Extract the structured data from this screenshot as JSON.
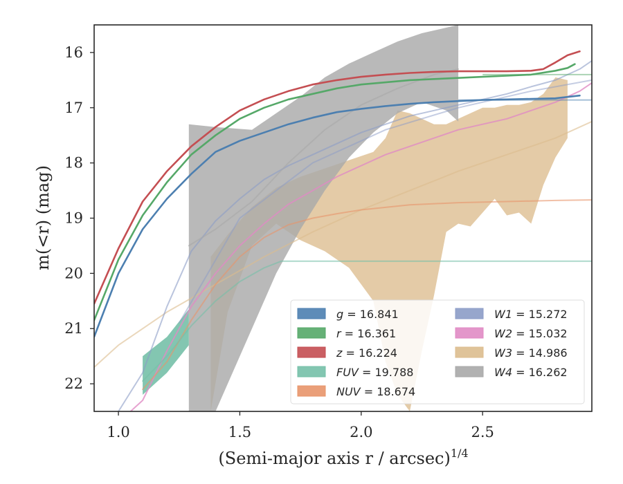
{
  "chart_data": {
    "type": "line",
    "xlabel": "(Semi-major axis r / arcsec)",
    "xlabel_superscript": "1/4",
    "ylabel": "m(<r) (mag)",
    "xlim": [
      0.9,
      2.95
    ],
    "ylim": [
      22.5,
      15.5
    ],
    "y_inverted": true,
    "x_ticks": [
      1.0,
      1.5,
      2.0,
      2.5
    ],
    "x_tick_labels": [
      "1.0",
      "1.5",
      "2.0",
      "2.5"
    ],
    "y_ticks": [
      16,
      17,
      18,
      19,
      20,
      21,
      22
    ],
    "y_tick_labels": [
      "16",
      "17",
      "18",
      "19",
      "20",
      "21",
      "22"
    ],
    "grid": false,
    "legend": {
      "position": "lower-right",
      "columns": 2,
      "entries": [
        {
          "key": "g",
          "var": "g",
          "value": "16.841",
          "color": "#4c7fb0"
        },
        {
          "key": "r",
          "var": "r",
          "value": "16.361",
          "color": "#55a868"
        },
        {
          "key": "z",
          "var": "z",
          "value": "16.224",
          "color": "#c44e52"
        },
        {
          "key": "FUV",
          "var": "FUV",
          "value": "19.788",
          "color": "#76c0a8"
        },
        {
          "key": "NUV",
          "var": "NUV",
          "value": "18.674",
          "color": "#e8956a"
        },
        {
          "key": "W1",
          "var": "W1",
          "value": "15.272",
          "color": "#8c9cc7"
        },
        {
          "key": "W2",
          "var": "W2",
          "value": "15.032",
          "color": "#e08bc4"
        },
        {
          "key": "W3",
          "var": "W3",
          "value": "14.986",
          "color": "#dcbc8e"
        },
        {
          "key": "W4",
          "var": "W4",
          "value": "16.262",
          "color": "#a9a9a9"
        }
      ]
    },
    "series": [
      {
        "name": "g",
        "color": "#4c7fb0",
        "kind": "line",
        "x": [
          0.9,
          1.0,
          1.1,
          1.2,
          1.3,
          1.4,
          1.5,
          1.6,
          1.7,
          1.8,
          1.9,
          2.0,
          2.1,
          2.2,
          2.3,
          2.4,
          2.5,
          2.6,
          2.7,
          2.8,
          2.9
        ],
        "y": [
          21.15,
          20.0,
          19.2,
          18.65,
          18.2,
          17.8,
          17.6,
          17.45,
          17.3,
          17.18,
          17.08,
          17.02,
          16.97,
          16.93,
          16.9,
          16.88,
          16.86,
          16.85,
          16.84,
          16.83,
          16.78
        ],
        "model": {
          "x": [
            2.4,
            2.95
          ],
          "y": [
            16.86,
            16.86
          ]
        }
      },
      {
        "name": "r",
        "color": "#55a868",
        "kind": "line",
        "x": [
          0.9,
          1.0,
          1.1,
          1.2,
          1.3,
          1.4,
          1.5,
          1.6,
          1.7,
          1.8,
          1.9,
          2.0,
          2.1,
          2.2,
          2.3,
          2.4,
          2.5,
          2.6,
          2.7,
          2.8,
          2.85,
          2.88
        ],
        "y": [
          20.85,
          19.75,
          18.95,
          18.35,
          17.85,
          17.5,
          17.2,
          17.0,
          16.85,
          16.75,
          16.65,
          16.58,
          16.54,
          16.5,
          16.48,
          16.46,
          16.44,
          16.42,
          16.4,
          16.33,
          16.28,
          16.21
        ],
        "model": {
          "x": [
            2.5,
            2.95
          ],
          "y": [
            16.4,
            16.4
          ]
        }
      },
      {
        "name": "z",
        "color": "#c44e52",
        "kind": "line",
        "x": [
          0.9,
          1.0,
          1.1,
          1.2,
          1.3,
          1.4,
          1.5,
          1.6,
          1.7,
          1.8,
          1.9,
          2.0,
          2.1,
          2.2,
          2.3,
          2.4,
          2.5,
          2.6,
          2.7,
          2.75,
          2.8,
          2.85,
          2.9
        ],
        "y": [
          20.55,
          19.55,
          18.7,
          18.15,
          17.7,
          17.35,
          17.05,
          16.85,
          16.7,
          16.58,
          16.5,
          16.44,
          16.4,
          16.37,
          16.35,
          16.34,
          16.34,
          16.34,
          16.33,
          16.3,
          16.18,
          16.05,
          15.98
        ]
      },
      {
        "name": "FUV",
        "color": "#76c0a8",
        "kind": "band+line",
        "band_x": [
          1.1,
          1.2,
          1.29
        ],
        "band_lo": [
          21.5,
          21.15,
          20.65
        ],
        "band_hi": [
          22.2,
          21.8,
          21.3
        ],
        "x": [
          1.1,
          1.2,
          1.3,
          1.4,
          1.5,
          1.6,
          1.67,
          2.0,
          2.5,
          2.95
        ],
        "y": [
          21.95,
          21.5,
          20.95,
          20.5,
          20.15,
          19.9,
          19.78,
          19.78,
          19.78,
          19.78
        ]
      },
      {
        "name": "NUV",
        "color": "#e8956a",
        "kind": "line",
        "x": [
          1.1,
          1.2,
          1.3,
          1.4,
          1.5,
          1.6,
          1.7,
          1.8,
          1.9,
          2.0,
          2.2,
          2.4,
          2.6,
          2.8,
          2.95
        ],
        "y": [
          22.1,
          21.6,
          20.85,
          20.2,
          19.7,
          19.35,
          19.12,
          19.0,
          18.92,
          18.85,
          18.76,
          18.72,
          18.7,
          18.68,
          18.67
        ]
      },
      {
        "name": "W1",
        "color": "#8c9cc7",
        "kind": "line",
        "x": [
          1.0,
          1.1,
          1.2,
          1.3,
          1.4,
          1.5,
          1.6,
          1.7,
          1.8,
          1.9,
          2.0,
          2.1,
          2.2,
          2.3,
          2.4,
          2.5,
          2.6,
          2.7,
          2.8,
          2.9,
          2.95
        ],
        "y": [
          22.5,
          21.8,
          20.6,
          19.6,
          19.05,
          18.65,
          18.3,
          18.05,
          17.85,
          17.65,
          17.45,
          17.3,
          17.15,
          17.05,
          16.95,
          16.85,
          16.75,
          16.62,
          16.5,
          16.3,
          16.15
        ],
        "model": {
          "x": [
            1.25,
            1.5,
            1.8,
            2.1,
            2.4,
            2.7,
            2.95
          ],
          "y": [
            20.9,
            19.0,
            18.0,
            17.4,
            17.0,
            16.7,
            16.5
          ]
        }
      },
      {
        "name": "W2",
        "color": "#e08bc4",
        "kind": "line",
        "x": [
          1.0,
          1.1,
          1.2,
          1.3,
          1.4,
          1.5,
          1.6,
          1.7,
          1.8,
          1.9,
          2.0,
          2.1,
          2.2,
          2.3,
          2.4,
          2.5,
          2.6,
          2.7,
          2.8,
          2.9,
          2.95
        ],
        "y": [
          22.7,
          22.3,
          21.4,
          20.6,
          20.0,
          19.5,
          19.1,
          18.75,
          18.5,
          18.25,
          18.05,
          17.85,
          17.7,
          17.55,
          17.4,
          17.3,
          17.2,
          17.05,
          16.9,
          16.7,
          16.55
        ]
      },
      {
        "name": "W3",
        "color": "#dcbc8e",
        "kind": "band+line",
        "band_x": [
          1.38,
          1.45,
          1.55,
          1.65,
          1.75,
          1.85,
          1.95,
          2.05,
          2.1,
          2.15,
          2.2,
          2.25,
          2.3,
          2.35,
          2.4,
          2.45,
          2.5,
          2.55,
          2.6,
          2.65,
          2.7,
          2.75,
          2.8,
          2.85
        ],
        "band_lo": [
          22.5,
          20.7,
          19.5,
          19.1,
          19.4,
          19.6,
          19.9,
          20.5,
          21.6,
          22.2,
          22.5,
          21.4,
          20.4,
          19.25,
          19.1,
          19.15,
          18.9,
          18.65,
          18.95,
          18.9,
          19.1,
          18.4,
          17.9,
          17.55
        ],
        "band_hi": [
          19.7,
          19.3,
          18.8,
          18.45,
          18.25,
          18.1,
          17.95,
          17.8,
          17.55,
          17.05,
          17.1,
          17.2,
          17.3,
          17.3,
          17.2,
          17.1,
          17.0,
          17.0,
          16.95,
          16.95,
          16.9,
          16.75,
          16.45,
          16.5
        ],
        "x": [
          0.9,
          1.0,
          1.2,
          1.4,
          1.6,
          1.8,
          2.0,
          2.2,
          2.4,
          2.6,
          2.8,
          2.95
        ],
        "y": [
          21.7,
          21.3,
          20.7,
          20.2,
          19.7,
          19.25,
          18.85,
          18.5,
          18.15,
          17.85,
          17.55,
          17.25
        ]
      },
      {
        "name": "W4",
        "color": "#a9a9a9",
        "kind": "band+line",
        "band_x": [
          1.29,
          1.4,
          1.55,
          1.65,
          1.75,
          1.85,
          1.95,
          2.05,
          2.15,
          2.25,
          2.35,
          2.4
        ],
        "band_lo": [
          22.5,
          22.5,
          21.0,
          20.0,
          19.2,
          18.5,
          17.9,
          17.45,
          17.1,
          16.9,
          17.05,
          17.25
        ],
        "band_hi": [
          17.3,
          17.35,
          17.4,
          17.1,
          16.8,
          16.45,
          16.2,
          16.0,
          15.8,
          15.65,
          15.55,
          15.5
        ],
        "x": [
          1.29,
          1.4,
          1.55,
          1.7,
          1.85,
          2.0,
          2.15,
          2.3,
          2.4
        ],
        "y": [
          19.5,
          19.2,
          18.7,
          18.0,
          17.4,
          16.95,
          16.65,
          16.4,
          16.3
        ]
      }
    ]
  }
}
